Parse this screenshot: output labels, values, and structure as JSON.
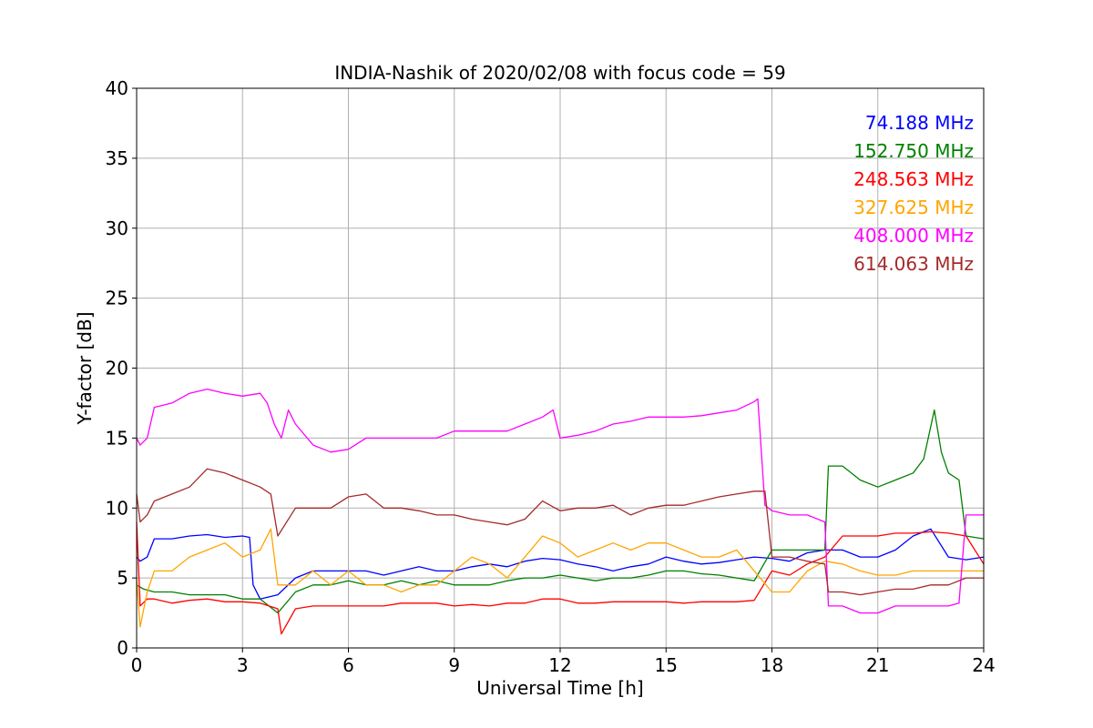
{
  "chart_data": {
    "type": "line",
    "title": "INDIA-Nashik of 2020/02/08 with focus code = 59",
    "xlabel": "Universal Time [h]",
    "ylabel": "Y-factor [dB]",
    "xlim": [
      0,
      24
    ],
    "ylim": [
      0,
      40
    ],
    "x_ticks": [
      0,
      3,
      6,
      9,
      12,
      15,
      18,
      21,
      24
    ],
    "y_ticks": [
      0,
      5,
      10,
      15,
      20,
      25,
      30,
      35,
      40
    ],
    "grid": true,
    "legend_position": "top-right",
    "series": [
      {
        "name": "74.188 MHz",
        "color": "#0000ff",
        "x": [
          0,
          0.1,
          0.3,
          0.5,
          1,
          1.5,
          2,
          2.5,
          3,
          3.2,
          3.3,
          3.5,
          4,
          4.5,
          5,
          5.5,
          6,
          6.5,
          7,
          7.5,
          8,
          8.5,
          9,
          9.5,
          10,
          10.5,
          11,
          11.5,
          12,
          12.5,
          13,
          13.5,
          14,
          14.5,
          15,
          15.5,
          16,
          16.5,
          17,
          17.5,
          18,
          18.5,
          19,
          19.5,
          20,
          20.5,
          21,
          21.5,
          22,
          22.5,
          23,
          23.5,
          24
        ],
        "y": [
          6.5,
          6.2,
          6.5,
          7.8,
          7.8,
          8,
          8.1,
          7.9,
          8,
          7.9,
          4.5,
          3.5,
          3.8,
          5,
          5.5,
          5.5,
          5.5,
          5.5,
          5.2,
          5.5,
          5.8,
          5.5,
          5.5,
          5.8,
          6,
          5.8,
          6.2,
          6.4,
          6.3,
          6,
          5.8,
          5.5,
          5.8,
          6,
          6.5,
          6.2,
          6,
          6.1,
          6.3,
          6.5,
          6.4,
          6.2,
          6.8,
          7,
          7,
          6.5,
          6.5,
          7,
          8,
          8.5,
          6.5,
          6.3,
          6.5
        ]
      },
      {
        "name": "152.750 MHz",
        "color": "#008000",
        "x": [
          0,
          0.2,
          0.5,
          1,
          1.5,
          2,
          2.5,
          3,
          3.5,
          4,
          4.5,
          5,
          5.5,
          6,
          6.5,
          7,
          7.5,
          8,
          8.5,
          9,
          9.5,
          10,
          10.5,
          11,
          11.5,
          12,
          12.5,
          13,
          13.5,
          14,
          14.5,
          15,
          15.5,
          16,
          16.5,
          17,
          17.5,
          18,
          18.5,
          19,
          19.5,
          19.6,
          20,
          20.5,
          21,
          21.5,
          22,
          22.3,
          22.6,
          22.8,
          23,
          23.3,
          23.5,
          24
        ],
        "y": [
          4.5,
          4.2,
          4,
          4,
          3.8,
          3.8,
          3.8,
          3.5,
          3.5,
          2.5,
          4,
          4.5,
          4.5,
          4.8,
          4.5,
          4.5,
          4.8,
          4.5,
          4.8,
          4.5,
          4.5,
          4.5,
          4.8,
          5,
          5,
          5.2,
          5,
          4.8,
          5,
          5,
          5.2,
          5.5,
          5.5,
          5.3,
          5.2,
          5.0,
          4.8,
          7,
          7,
          7,
          7,
          13,
          13,
          12,
          11.5,
          12,
          12.5,
          13.5,
          17,
          14,
          12.5,
          12,
          8,
          7.8
        ]
      },
      {
        "name": "248.563 MHz",
        "color": "#ff0000",
        "x": [
          0,
          0.1,
          0.3,
          0.5,
          1,
          1.5,
          2,
          2.5,
          3,
          3.5,
          4,
          4.1,
          4.5,
          5,
          5.5,
          6,
          6.5,
          7,
          7.5,
          8,
          8.5,
          9,
          9.5,
          10,
          10.5,
          11,
          11.5,
          12,
          12.5,
          13,
          13.5,
          14,
          14.5,
          15,
          15.5,
          16,
          16.5,
          17,
          17.5,
          18,
          18.5,
          19,
          19.5,
          20,
          20.5,
          21,
          21.5,
          22,
          22.5,
          23,
          23.5,
          24
        ],
        "y": [
          9,
          3,
          3.5,
          3.5,
          3.2,
          3.4,
          3.5,
          3.3,
          3.3,
          3.2,
          2.8,
          1,
          2.8,
          3,
          3,
          3,
          3,
          3,
          3.2,
          3.2,
          3.2,
          3,
          3.1,
          3,
          3.2,
          3.2,
          3.5,
          3.5,
          3.2,
          3.2,
          3.3,
          3.3,
          3.3,
          3.3,
          3.2,
          3.3,
          3.3,
          3.3,
          3.4,
          5.5,
          5.2,
          6,
          6.5,
          8,
          8,
          8,
          8.2,
          8.2,
          8.3,
          8.2,
          8,
          6
        ]
      },
      {
        "name": "327.625 MHz",
        "color": "#ffa500",
        "x": [
          0,
          0.1,
          0.3,
          0.5,
          1,
          1.5,
          2,
          2.5,
          3,
          3.5,
          3.8,
          4,
          4.5,
          5,
          5.5,
          6,
          6.5,
          7,
          7.5,
          8,
          8.5,
          9,
          9.5,
          10,
          10.5,
          11,
          11.5,
          12,
          12.5,
          13,
          13.5,
          14,
          14.5,
          15,
          15.5,
          16,
          16.5,
          17,
          17.5,
          18,
          18.5,
          19,
          19.5,
          20,
          20.5,
          21,
          21.5,
          22,
          22.5,
          23,
          23.5,
          24
        ],
        "y": [
          5,
          1.5,
          4,
          5.5,
          5.5,
          6.5,
          7,
          7.5,
          6.5,
          7,
          8.5,
          4.5,
          4.5,
          5.5,
          4.5,
          5.5,
          4.5,
          4.5,
          4,
          4.5,
          4.5,
          5.5,
          6.5,
          6,
          5,
          6.5,
          8,
          7.5,
          6.5,
          7,
          7.5,
          7,
          7.5,
          7.5,
          7,
          6.5,
          6.5,
          7,
          5.5,
          4,
          4,
          5.5,
          6.2,
          6,
          5.5,
          5.2,
          5.2,
          5.5,
          5.5,
          5.5,
          5.5,
          5.5
        ]
      },
      {
        "name": "408.000 MHz",
        "color": "#ff00ff",
        "x": [
          0,
          0.1,
          0.3,
          0.5,
          1,
          1.5,
          2,
          2.5,
          3,
          3.5,
          3.7,
          3.9,
          4.1,
          4.3,
          4.5,
          5,
          5.5,
          6,
          6.5,
          7,
          7.5,
          8,
          8.5,
          9,
          9.5,
          10,
          10.5,
          11,
          11.5,
          11.8,
          12,
          12.5,
          13,
          13.5,
          14,
          14.5,
          15,
          15.5,
          16,
          16.5,
          17,
          17.5,
          17.6,
          17.8,
          18,
          18.5,
          19,
          19.5,
          19.6,
          20,
          20.5,
          21,
          21.5,
          22,
          22.5,
          23,
          23.3,
          23.5,
          24
        ],
        "y": [
          15,
          14.5,
          15,
          17.2,
          17.5,
          18.2,
          18.5,
          18.2,
          18,
          18.2,
          17.5,
          16,
          15,
          17,
          16,
          14.5,
          14,
          14.2,
          15,
          15,
          15,
          15,
          15,
          15.5,
          15.5,
          15.5,
          15.5,
          16,
          16.5,
          17,
          15,
          15.2,
          15.5,
          16,
          16.2,
          16.5,
          16.5,
          16.5,
          16.6,
          16.8,
          17,
          17.6,
          17.8,
          10.2,
          9.8,
          9.5,
          9.5,
          9,
          3,
          3,
          2.5,
          2.5,
          3,
          3,
          3,
          3,
          3.2,
          9.5,
          9.5
        ]
      },
      {
        "name": "614.063 MHz",
        "color": "#a52a2a",
        "x": [
          0,
          0.1,
          0.3,
          0.5,
          1,
          1.5,
          2,
          2.5,
          3,
          3.5,
          3.8,
          4,
          4.5,
          5,
          5.5,
          6,
          6.5,
          7,
          7.5,
          8,
          8.5,
          9,
          9.5,
          10,
          10.5,
          11,
          11.5,
          12,
          12.5,
          13,
          13.5,
          14,
          14.5,
          15,
          15.5,
          16,
          16.5,
          17,
          17.5,
          17.8,
          18,
          18.5,
          19,
          19.5,
          19.6,
          20,
          20.5,
          21,
          21.5,
          22,
          22.5,
          23,
          23.5,
          24
        ],
        "y": [
          11,
          9,
          9.5,
          10.5,
          11,
          11.5,
          12.8,
          12.5,
          12,
          11.5,
          11,
          8,
          10,
          10,
          10,
          10.8,
          11,
          10,
          10,
          9.8,
          9.5,
          9.5,
          9.2,
          9,
          8.8,
          9.2,
          10.5,
          9.8,
          10,
          10,
          10.2,
          9.5,
          10,
          10.2,
          10.2,
          10.5,
          10.8,
          11,
          11.2,
          11.2,
          6.5,
          6.5,
          6.2,
          6,
          4,
          4,
          3.8,
          4,
          4.2,
          4.2,
          4.5,
          4.5,
          5,
          5
        ]
      }
    ]
  }
}
